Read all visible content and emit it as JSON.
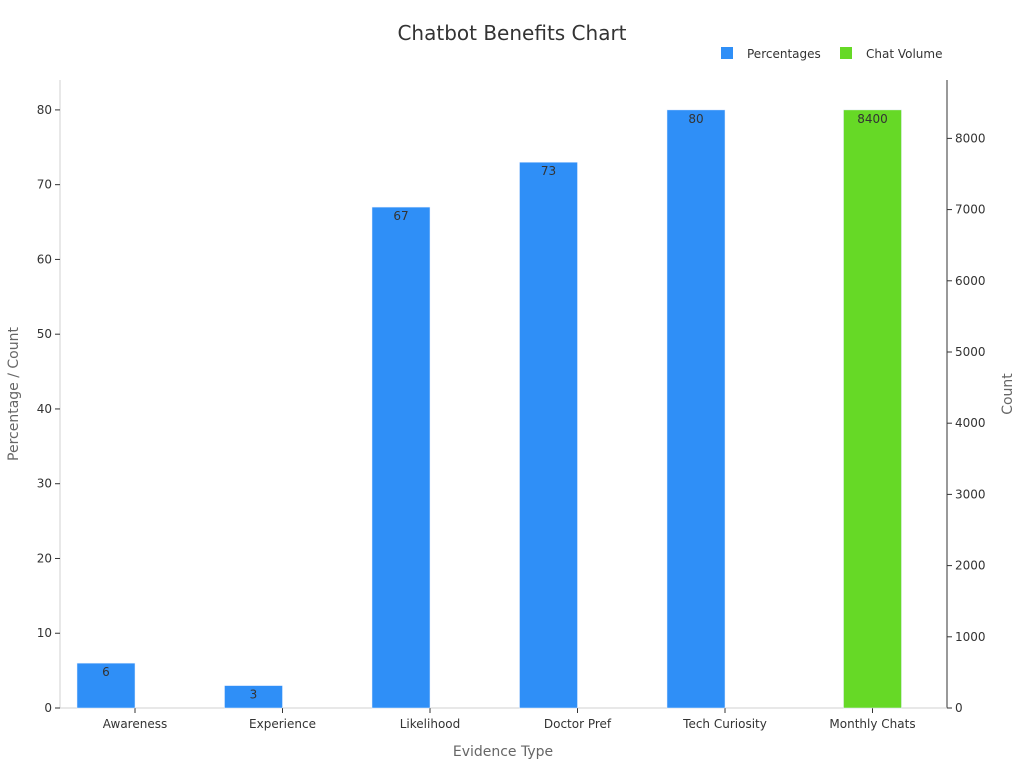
{
  "chart_data": {
    "type": "bar",
    "title": "Chatbot Benefits Chart",
    "xlabel": "Evidence Type",
    "ylabel": "Percentage / Count",
    "y2label": "Count",
    "categories": [
      "Awareness",
      "Experience",
      "Likelihood",
      "Doctor Pref",
      "Tech Curiosity",
      "Monthly Chats"
    ],
    "ylim": [
      0,
      84
    ],
    "y2lim": [
      0,
      8820
    ],
    "yticks": [
      0,
      10,
      20,
      30,
      40,
      50,
      60,
      70,
      80
    ],
    "y2ticks": [
      0,
      1000,
      2000,
      3000,
      4000,
      5000,
      6000,
      7000,
      8000
    ],
    "legend_position": "top-right",
    "grid": false,
    "series": [
      {
        "name": "Percentages",
        "axis": "left",
        "color": "#2f8ff7",
        "values": [
          6,
          3,
          67,
          73,
          80,
          null
        ]
      },
      {
        "name": "Chat Volume",
        "axis": "right",
        "color": "#66d926",
        "values": [
          null,
          null,
          null,
          null,
          null,
          8400
        ]
      }
    ]
  }
}
